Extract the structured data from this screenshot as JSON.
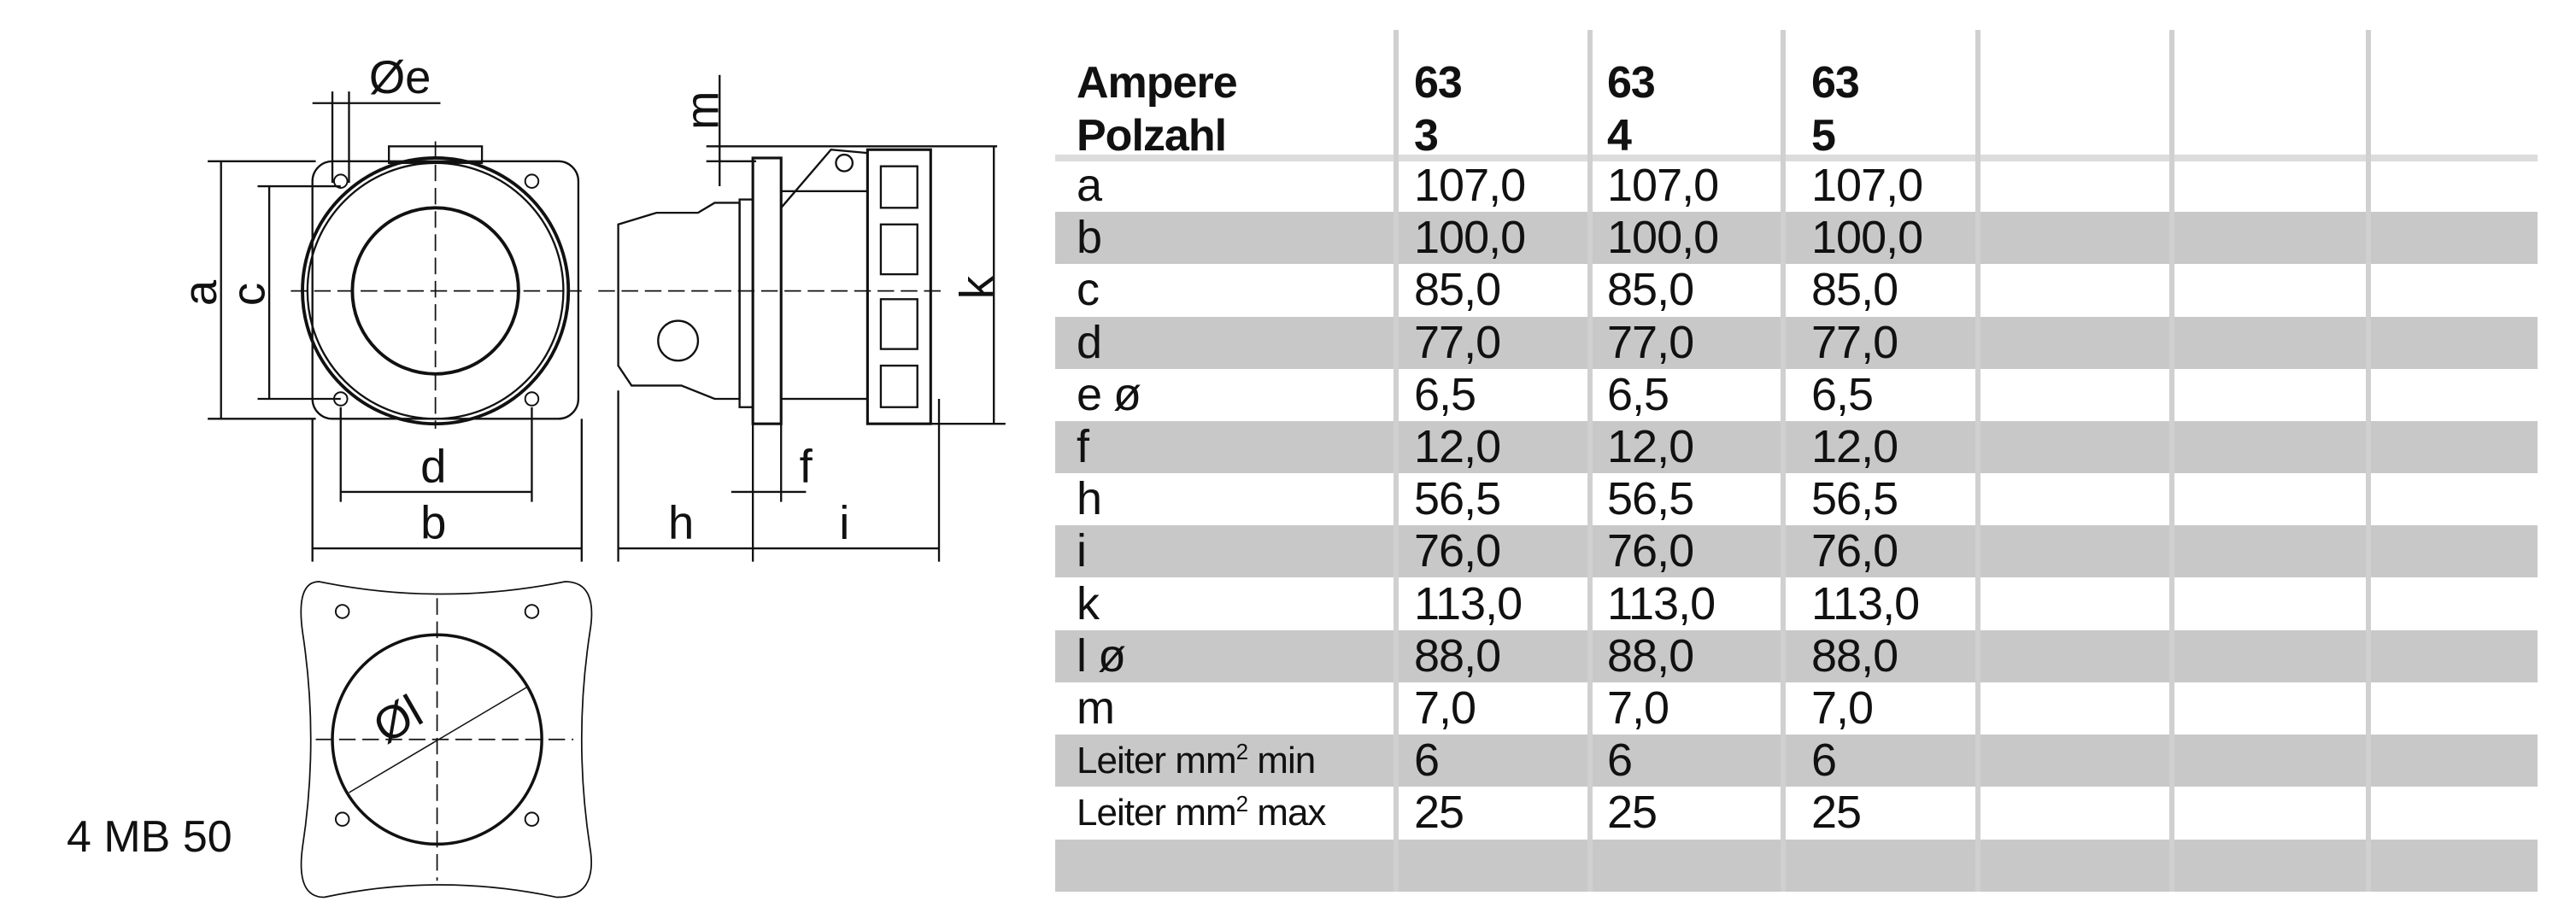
{
  "drawing": {
    "labels": {
      "e": "Øe",
      "a": "a",
      "c": "c",
      "d": "d",
      "b": "b",
      "m": "m",
      "k": "k",
      "f": "f",
      "h": "h",
      "i": "i",
      "l": "Øl"
    },
    "model": "4 MB 50"
  },
  "table": {
    "header": {
      "row1_label": "Ampere",
      "row2_label": "Polzahl",
      "columns": [
        {
          "ampere": "63",
          "polzahl": "3"
        },
        {
          "ampere": "63",
          "polzahl": "4"
        },
        {
          "ampere": "63",
          "polzahl": "5"
        }
      ]
    },
    "rows": [
      {
        "label": "a",
        "values": [
          "107,0",
          "107,0",
          "107,0"
        ]
      },
      {
        "label": "b",
        "values": [
          "100,0",
          "100,0",
          "100,0"
        ]
      },
      {
        "label": "c",
        "values": [
          "85,0",
          "85,0",
          "85,0"
        ]
      },
      {
        "label": "d",
        "values": [
          "77,0",
          "77,0",
          "77,0"
        ]
      },
      {
        "label": "e ø",
        "values": [
          "6,5",
          "6,5",
          "6,5"
        ]
      },
      {
        "label": "f",
        "values": [
          "12,0",
          "12,0",
          "12,0"
        ]
      },
      {
        "label": "h",
        "values": [
          "56,5",
          "56,5",
          "56,5"
        ]
      },
      {
        "label": "i",
        "values": [
          "76,0",
          "76,0",
          "76,0"
        ]
      },
      {
        "label": "k",
        "values": [
          "113,0",
          "113,0",
          "113,0"
        ]
      },
      {
        "label": "l ø",
        "values": [
          "88,0",
          "88,0",
          "88,0"
        ]
      },
      {
        "label": "m",
        "values": [
          "7,0",
          "7,0",
          "7,0"
        ]
      },
      {
        "label_pre": "Leiter mm",
        "label_sup": "2",
        "label_post": " min",
        "values": [
          "6",
          "6",
          "6"
        ]
      },
      {
        "label_pre": "Leiter mm",
        "label_sup": "2",
        "label_post": " max",
        "values": [
          "25",
          "25",
          "25"
        ]
      },
      {
        "label": "",
        "values": [
          "",
          "",
          ""
        ]
      }
    ],
    "row_shading": "#c8c8c8",
    "grid_color": "#d0d0d0"
  }
}
